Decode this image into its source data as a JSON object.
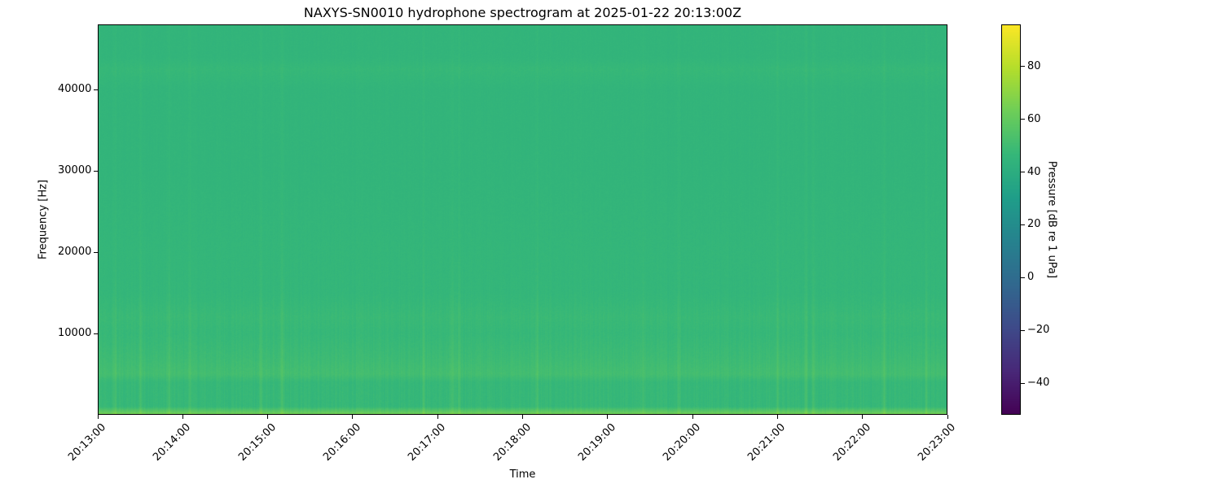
{
  "chart_data": {
    "type": "heatmap",
    "title": "NAXYS-SN0010 hydrophone spectrogram at 2025-01-22 20:13:00Z",
    "xlabel": "Time",
    "ylabel": "Frequency [Hz]",
    "colorbar_label": "Pressure [dB re 1 uPa]",
    "colormap": "viridis",
    "xlim": [
      "20:13:00",
      "20:23:00"
    ],
    "x_ticks": [
      "20:13:00",
      "20:14:00",
      "20:15:00",
      "20:16:00",
      "20:17:00",
      "20:18:00",
      "20:19:00",
      "20:20:00",
      "20:21:00",
      "20:22:00",
      "20:23:00"
    ],
    "ylim": [
      0,
      48000
    ],
    "y_ticks": [
      10000,
      20000,
      30000,
      40000
    ],
    "clim": [
      -52,
      96
    ],
    "colorbar_ticks": [
      -40,
      -20,
      0,
      20,
      40,
      60,
      80
    ],
    "mean_level_by_frequency": {
      "frequency_hz": [
        0,
        500,
        1000,
        4000,
        5000,
        7000,
        10000,
        12000,
        15000,
        20000,
        30000,
        40000,
        42500,
        44000,
        48000
      ],
      "level_db": [
        66,
        56,
        47,
        47,
        51,
        49,
        47,
        48,
        46,
        46,
        45,
        45,
        47,
        45,
        45
      ]
    },
    "transient_event_times": [
      "20:13:12",
      "20:13:30",
      "20:13:50",
      "20:14:05",
      "20:14:55",
      "20:15:10",
      "20:16:50",
      "20:17:10",
      "20:17:15",
      "20:18:10",
      "20:19:25",
      "20:19:50",
      "20:21:00",
      "20:21:20",
      "20:21:25",
      "20:22:15",
      "20:22:45"
    ]
  }
}
